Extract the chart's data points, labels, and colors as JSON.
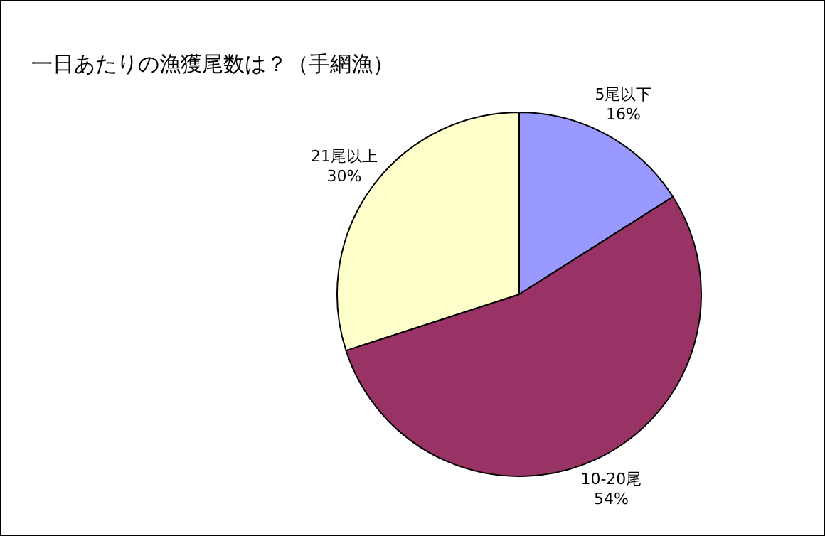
{
  "chart_data": {
    "type": "pie",
    "title": "一日あたりの漁獲尾数は？（手網漁）",
    "categories": [
      "5尾以下",
      "10-20尾",
      "21尾以上"
    ],
    "values": [
      16,
      54,
      30
    ],
    "value_labels": [
      "16%",
      "54%",
      "30%"
    ],
    "colors": [
      "#9999ff",
      "#993366",
      "#ffffcc"
    ]
  }
}
